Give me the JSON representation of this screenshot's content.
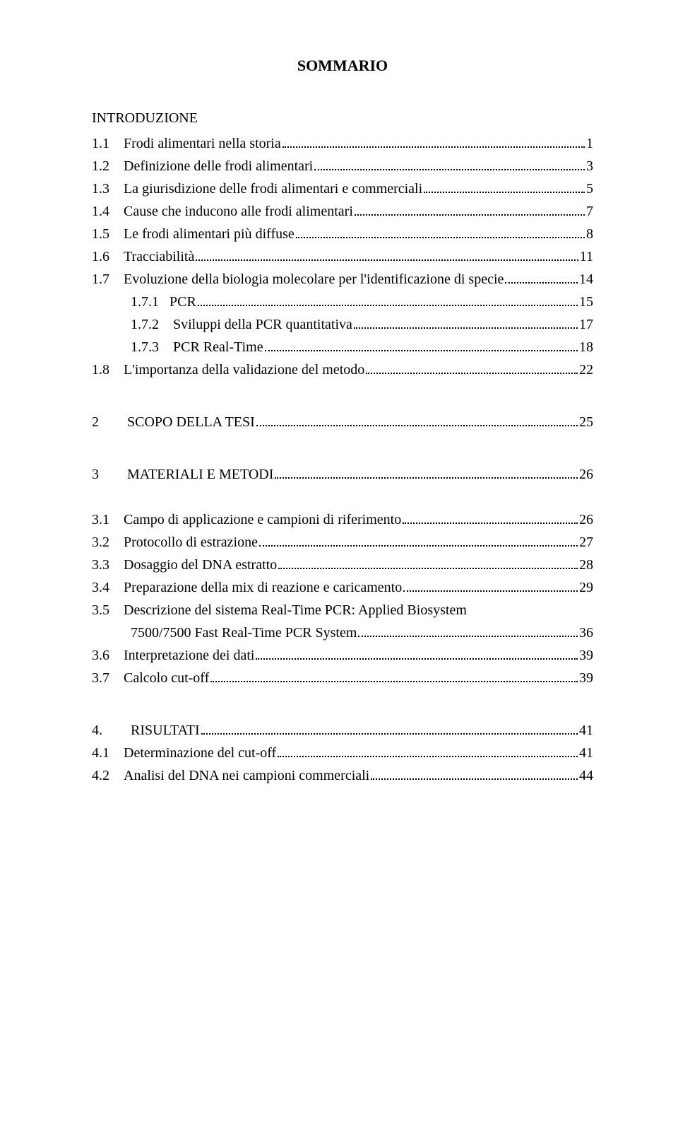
{
  "title": "SOMMARIO",
  "entries": [
    {
      "type": "head",
      "num": "",
      "text": "INTRODUZIONE",
      "page": ""
    },
    {
      "type": "line",
      "num": "1.1",
      "text": "Frodi alimentari nella storia",
      "page": "1"
    },
    {
      "type": "line",
      "num": "1.2",
      "text": "Definizione delle frodi alimentari",
      "page": "3"
    },
    {
      "type": "line",
      "num": "1.3",
      "text": "La giurisdizione delle frodi alimentari e commerciali",
      "page": "5"
    },
    {
      "type": "line",
      "num": "1.4",
      "text": "Cause che inducono alle frodi alimentari",
      "page": "7"
    },
    {
      "type": "line",
      "num": "1.5",
      "text": "Le frodi alimentari più diffuse",
      "page": "8"
    },
    {
      "type": "line",
      "num": "1.6",
      "text": "Tracciabilità",
      "page": "11"
    },
    {
      "type": "line",
      "num": "1.7",
      "text": "Evoluzione della biologia molecolare per l'identificazione di specie",
      "page": "14"
    },
    {
      "type": "line",
      "num": "1.7.1",
      "text": "PCR",
      "page": "15",
      "indent": true,
      "wide": true
    },
    {
      "type": "line",
      "num": "1.7.2",
      "text": "Sviluppi della PCR quantitativa",
      "page": "17",
      "indent": true
    },
    {
      "type": "line",
      "num": "1.7.3",
      "text": "PCR Real-Time",
      "page": "18",
      "indent": true
    },
    {
      "type": "line",
      "num": "1.8",
      "text": "L'importanza della validazione del metodo",
      "page": "22"
    },
    {
      "type": "gap-lg"
    },
    {
      "type": "line",
      "num": "2",
      "text": "SCOPO DELLA TESI",
      "page": "25",
      "pad": true
    },
    {
      "type": "gap-lg"
    },
    {
      "type": "line",
      "num": "3",
      "text": "MATERIALI E METODI",
      "page": "26",
      "pad": true
    },
    {
      "type": "gap"
    },
    {
      "type": "line",
      "num": "3.1",
      "text": "Campo di applicazione e campioni di riferimento",
      "page": "26"
    },
    {
      "type": "line",
      "num": "3.2",
      "text": "Protocollo di estrazione",
      "page": "27"
    },
    {
      "type": "line",
      "num": "3.3",
      "text": "Dosaggio del DNA estratto",
      "page": "28"
    },
    {
      "type": "line",
      "num": "3.4",
      "text": "Preparazione della mix di reazione e caricamento",
      "page": "29"
    },
    {
      "type": "two",
      "num": "3.5",
      "text1": "Descrizione del sistema Real-Time PCR: Applied Biosystem",
      "text2": "7500/7500 Fast Real-Time PCR System",
      "page": "36"
    },
    {
      "type": "line",
      "num": "3.6",
      "text": "Interpretazione dei dati",
      "page": "39"
    },
    {
      "type": "line",
      "num": "3.7",
      "text": "Calcolo cut-off ",
      "page": "39"
    },
    {
      "type": "gap-lg"
    },
    {
      "type": "line",
      "num": "4.",
      "text": "RISULTATI",
      "page": "41",
      "pad": true
    },
    {
      "type": "line",
      "num": "4.1",
      "text": "Determinazione del cut-off ",
      "page": "41"
    },
    {
      "type": "line",
      "num": "4.2",
      "text": "Analisi del DNA nei campioni commerciali",
      "page": "44"
    }
  ]
}
